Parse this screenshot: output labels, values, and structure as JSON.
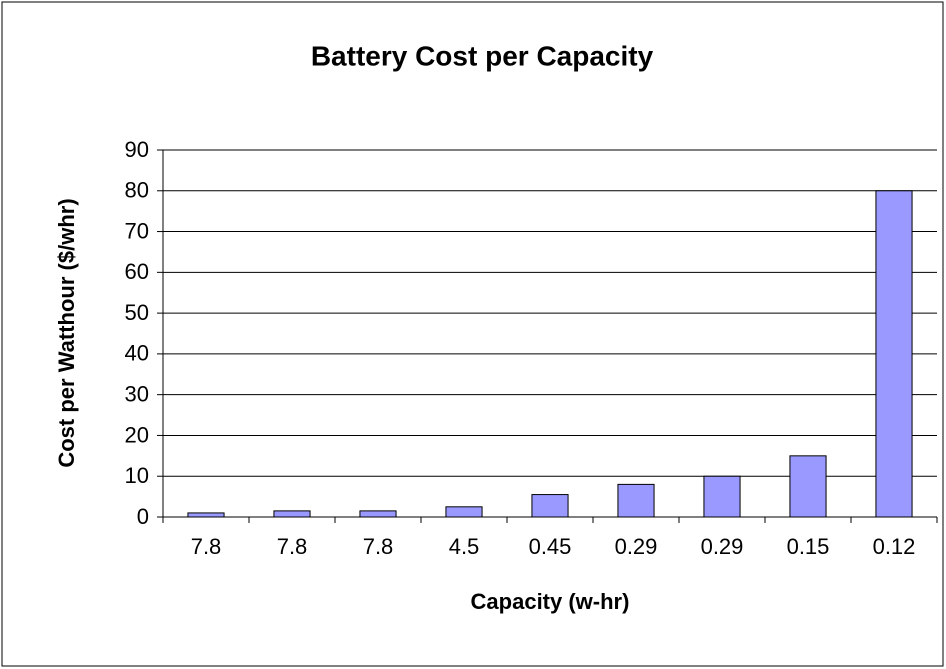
{
  "chart_data": {
    "type": "bar",
    "title": "Battery Cost per Capacity",
    "x_label": "Capacity (w-hr)",
    "y_label": "Cost per Watthour ($/whr)",
    "categories": [
      "7.8",
      "7.8",
      "7.8",
      "4.5",
      "0.45",
      "0.29",
      "0.29",
      "0.15",
      "0.12"
    ],
    "values": [
      1,
      1.5,
      1.5,
      2.5,
      5.5,
      8,
      10,
      15,
      80
    ],
    "color": "#9999ff",
    "ylim": [
      0,
      90
    ],
    "yticks": [
      0,
      10,
      20,
      30,
      40,
      50,
      60,
      70,
      80,
      90
    ],
    "grid": true
  }
}
